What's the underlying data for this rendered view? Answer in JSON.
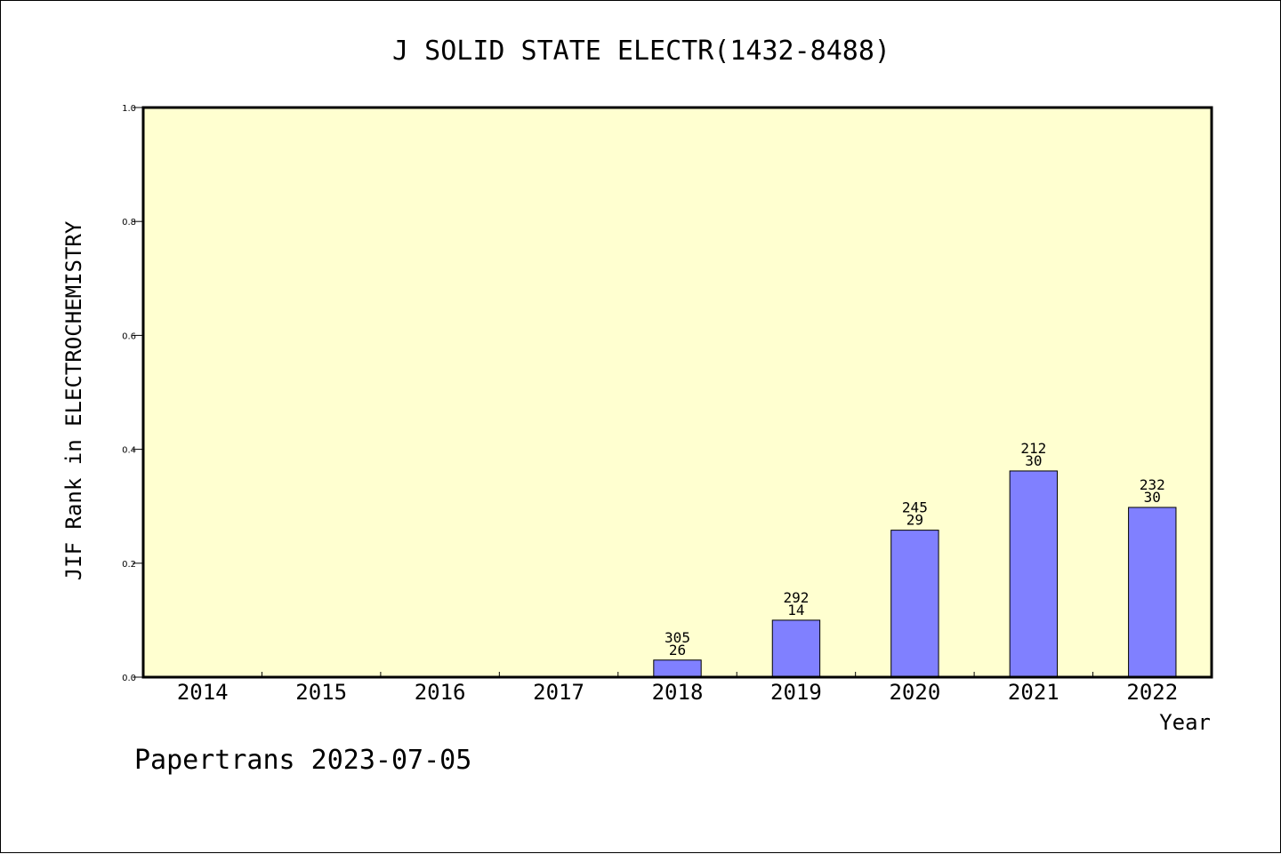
{
  "chart_data": {
    "type": "bar",
    "title": "J SOLID STATE ELECTR(1432-8488)",
    "xlabel": "Year",
    "ylabel": "JIF Rank in ELECTROCHEMISTRY",
    "categories": [
      "2014",
      "2015",
      "2016",
      "2017",
      "2018",
      "2019",
      "2020",
      "2021",
      "2022"
    ],
    "values": [
      null,
      null,
      null,
      null,
      0.03,
      0.1,
      0.258,
      0.362,
      0.298
    ],
    "data_labels": [
      null,
      null,
      null,
      null,
      {
        "top": "305",
        "bottom": "26"
      },
      {
        "top": "292",
        "bottom": "14"
      },
      {
        "top": "245",
        "bottom": "29"
      },
      {
        "top": "212",
        "bottom": "30"
      },
      {
        "top": "232",
        "bottom": "30"
      }
    ],
    "ylim": [
      0,
      1.0
    ],
    "yticks": [
      "0.0",
      "0.2",
      "0.4",
      "0.6",
      "0.8",
      "1.0"
    ],
    "grid": false,
    "plot_background": "#ffffd0",
    "bar_color": "#8080ff"
  },
  "footer": "Papertrans 2023-07-05"
}
